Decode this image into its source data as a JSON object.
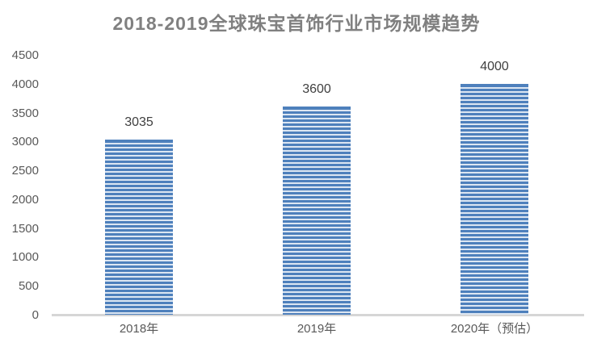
{
  "chart_data": {
    "type": "bar",
    "title": "2018-2019全球珠宝首饰行业市场规模趋势",
    "categories": [
      "2018年",
      "2019年",
      "2020年（预估）"
    ],
    "values": [
      3035,
      3600,
      4000
    ],
    "data_labels": [
      "3035",
      "3600",
      "4000"
    ],
    "xlabel": "",
    "ylabel": "",
    "ylim": [
      0,
      4500
    ],
    "ytick_step": 500,
    "yticks": [
      0,
      500,
      1000,
      1500,
      2000,
      2500,
      3000,
      3500,
      4000,
      4500
    ],
    "grid": false,
    "legend": "none",
    "bar_style": "horizontal-stripes",
    "colors": {
      "bar_stripe_dark": "#4e80bc",
      "bar_stripe_light": "#dce6f2",
      "axis_line": "#d6d6d6",
      "title_text": "#808080",
      "tick_text": "#595959",
      "data_label_text": "#404040",
      "background": "#ffffff"
    }
  }
}
